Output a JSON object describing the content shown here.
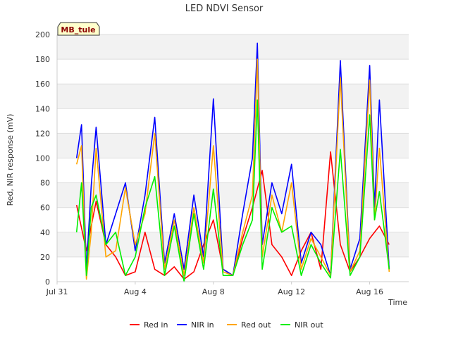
{
  "chart_data": {
    "type": "line",
    "title": "LED NDVI Sensor",
    "xlabel": "Time",
    "ylabel": "Red, NIR response (mV)",
    "badge": "MB_tule",
    "ylim": [
      0,
      200
    ],
    "xlim_days": [
      "2024-07-31",
      "2024-08-18"
    ],
    "yticks": [
      0,
      20,
      40,
      60,
      80,
      100,
      120,
      140,
      160,
      180,
      200
    ],
    "xticks": [
      {
        "date": "2024-07-31",
        "label": "Jul 31"
      },
      {
        "date": "2024-08-04",
        "label": "Aug 4"
      },
      {
        "date": "2024-08-08",
        "label": "Aug 8"
      },
      {
        "date": "2024-08-12",
        "label": "Aug 12"
      },
      {
        "date": "2024-08-16",
        "label": "Aug 16"
      }
    ],
    "grid": "horizontal-bands",
    "legend_position": "bottom",
    "series": [
      {
        "name": "Red in",
        "color": "#ff0000",
        "x": [
          "2024-08-01T00:00",
          "2024-08-01T12:00",
          "2024-08-02T00:00",
          "2024-08-02T12:00",
          "2024-08-03T00:00",
          "2024-08-03T12:00",
          "2024-08-04T00:00",
          "2024-08-04T12:00",
          "2024-08-05T00:00",
          "2024-08-05T12:00",
          "2024-08-06T00:00",
          "2024-08-06T12:00",
          "2024-08-07T00:00",
          "2024-08-07T12:00",
          "2024-08-08T00:00",
          "2024-08-08T12:00",
          "2024-08-09T00:00",
          "2024-08-09T12:00",
          "2024-08-10T00:00",
          "2024-08-10T12:00",
          "2024-08-11T00:00",
          "2024-08-11T12:00",
          "2024-08-12T00:00",
          "2024-08-12T12:00",
          "2024-08-13T00:00",
          "2024-08-13T12:00",
          "2024-08-14T00:00",
          "2024-08-14T12:00",
          "2024-08-15T00:00",
          "2024-08-15T12:00",
          "2024-08-16T00:00",
          "2024-08-16T12:00",
          "2024-08-17T00:00"
        ],
        "values": [
          62,
          25,
          65,
          30,
          20,
          5,
          8,
          40,
          10,
          5,
          12,
          2,
          8,
          30,
          50,
          10,
          5,
          35,
          60,
          90,
          30,
          20,
          5,
          25,
          40,
          10,
          105,
          30,
          8,
          20,
          35,
          45,
          30
        ]
      },
      {
        "name": "NIR in",
        "color": "#0000ff",
        "x": [
          "2024-08-01T00:00",
          "2024-08-01T06:00",
          "2024-08-01T12:00",
          "2024-08-01T18:00",
          "2024-08-02T00:00",
          "2024-08-02T12:00",
          "2024-08-03T00:00",
          "2024-08-03T12:00",
          "2024-08-04T00:00",
          "2024-08-04T12:00",
          "2024-08-05T00:00",
          "2024-08-05T12:00",
          "2024-08-06T00:00",
          "2024-08-06T12:00",
          "2024-08-07T00:00",
          "2024-08-07T12:00",
          "2024-08-08T00:00",
          "2024-08-08T12:00",
          "2024-08-09T00:00",
          "2024-08-09T12:00",
          "2024-08-10T00:00",
          "2024-08-10T06:00",
          "2024-08-10T12:00",
          "2024-08-11T00:00",
          "2024-08-11T12:00",
          "2024-08-12T00:00",
          "2024-08-12T12:00",
          "2024-08-13T00:00",
          "2024-08-13T12:00",
          "2024-08-14T00:00",
          "2024-08-14T12:00",
          "2024-08-15T00:00",
          "2024-08-15T12:00",
          "2024-08-16T00:00",
          "2024-08-16T06:00",
          "2024-08-16T12:00",
          "2024-08-17T00:00"
        ],
        "values": [
          100,
          127,
          10,
          78,
          125,
          30,
          55,
          80,
          25,
          70,
          133,
          15,
          55,
          10,
          70,
          20,
          148,
          10,
          5,
          55,
          100,
          193,
          30,
          80,
          55,
          95,
          15,
          40,
          30,
          5,
          179,
          10,
          35,
          175,
          60,
          147,
          10
        ]
      },
      {
        "name": "Red out",
        "color": "#ffa500",
        "x": [
          "2024-08-01T00:00",
          "2024-08-01T06:00",
          "2024-08-01T12:00",
          "2024-08-01T18:00",
          "2024-08-02T00:00",
          "2024-08-02T12:00",
          "2024-08-03T00:00",
          "2024-08-03T12:00",
          "2024-08-04T00:00",
          "2024-08-04T12:00",
          "2024-08-05T00:00",
          "2024-08-05T12:00",
          "2024-08-06T00:00",
          "2024-08-06T12:00",
          "2024-08-07T00:00",
          "2024-08-07T12:00",
          "2024-08-08T00:00",
          "2024-08-08T12:00",
          "2024-08-09T00:00",
          "2024-08-09T12:00",
          "2024-08-10T00:00",
          "2024-08-10T06:00",
          "2024-08-10T12:00",
          "2024-08-11T00:00",
          "2024-08-11T12:00",
          "2024-08-12T00:00",
          "2024-08-12T12:00",
          "2024-08-13T00:00",
          "2024-08-13T12:00",
          "2024-08-14T00:00",
          "2024-08-14T12:00",
          "2024-08-15T00:00",
          "2024-08-15T12:00",
          "2024-08-16T00:00",
          "2024-08-16T06:00",
          "2024-08-16T12:00",
          "2024-08-17T00:00"
        ],
        "values": [
          95,
          110,
          2,
          40,
          108,
          20,
          25,
          76,
          30,
          55,
          120,
          10,
          50,
          5,
          60,
          15,
          110,
          8,
          5,
          40,
          70,
          180,
          20,
          70,
          40,
          80,
          10,
          35,
          20,
          5,
          165,
          8,
          25,
          163,
          50,
          108,
          8
        ]
      },
      {
        "name": "NIR out",
        "color": "#00ee00",
        "x": [
          "2024-08-01T00:00",
          "2024-08-01T06:00",
          "2024-08-01T12:00",
          "2024-08-01T18:00",
          "2024-08-02T00:00",
          "2024-08-02T12:00",
          "2024-08-03T00:00",
          "2024-08-03T12:00",
          "2024-08-04T00:00",
          "2024-08-04T12:00",
          "2024-08-05T00:00",
          "2024-08-05T12:00",
          "2024-08-06T00:00",
          "2024-08-06T12:00",
          "2024-08-07T00:00",
          "2024-08-07T12:00",
          "2024-08-08T00:00",
          "2024-08-08T12:00",
          "2024-08-09T00:00",
          "2024-08-09T12:00",
          "2024-08-10T00:00",
          "2024-08-10T06:00",
          "2024-08-10T12:00",
          "2024-08-11T00:00",
          "2024-08-11T12:00",
          "2024-08-12T00:00",
          "2024-08-12T12:00",
          "2024-08-13T00:00",
          "2024-08-13T12:00",
          "2024-08-14T00:00",
          "2024-08-14T12:00",
          "2024-08-15T00:00",
          "2024-08-15T12:00",
          "2024-08-16T00:00",
          "2024-08-16T06:00",
          "2024-08-16T12:00",
          "2024-08-17T00:00"
        ],
        "values": [
          40,
          80,
          5,
          60,
          70,
          30,
          40,
          5,
          20,
          60,
          85,
          5,
          45,
          0,
          55,
          10,
          75,
          5,
          5,
          30,
          50,
          147,
          10,
          60,
          40,
          45,
          5,
          30,
          15,
          3,
          107,
          5,
          20,
          135,
          50,
          73,
          10
        ]
      }
    ]
  }
}
